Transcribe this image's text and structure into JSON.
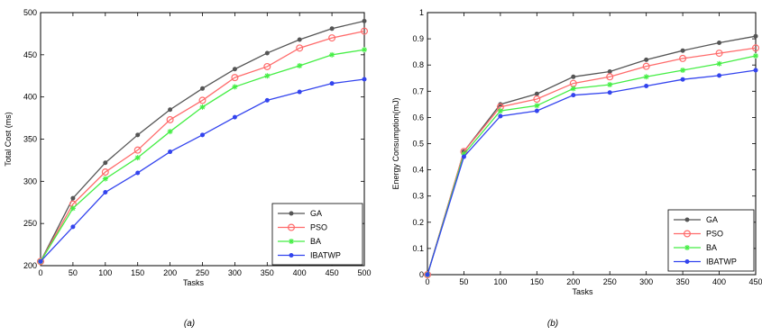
{
  "chart_data": [
    {
      "type": "line",
      "caption": "(a)",
      "xlabel": "Tasks",
      "ylabel": "Total Cost (ms)",
      "xlim": [
        0,
        500
      ],
      "ylim": [
        200,
        500
      ],
      "xticks": [
        0,
        50,
        100,
        150,
        200,
        250,
        300,
        350,
        400,
        450,
        500
      ],
      "yticks": [
        200,
        250,
        300,
        350,
        400,
        450,
        500
      ],
      "grid": false,
      "legend_position": "bottom-right",
      "x": [
        0,
        50,
        100,
        150,
        200,
        250,
        300,
        350,
        400,
        450,
        500
      ],
      "series": [
        {
          "name": "GA",
          "color": "#555555",
          "marker": "dot",
          "values": [
            205,
            280,
            322,
            355,
            385,
            410,
            433,
            452,
            468,
            481,
            490
          ]
        },
        {
          "name": "PSO",
          "color": "#ff6b6b",
          "marker": "circle",
          "values": [
            205,
            273,
            311,
            337,
            373,
            396,
            423,
            436,
            458,
            470,
            478
          ]
        },
        {
          "name": "BA",
          "color": "#44ee44",
          "marker": "star",
          "values": [
            205,
            268,
            303,
            328,
            359,
            388,
            412,
            425,
            437,
            450,
            456
          ]
        },
        {
          "name": "IBATWP",
          "color": "#3344ee",
          "marker": "dot",
          "values": [
            205,
            246,
            287,
            310,
            335,
            355,
            376,
            396,
            406,
            416,
            421
          ]
        }
      ]
    },
    {
      "type": "line",
      "caption": "(b)",
      "xlabel": "Tasks",
      "ylabel": "Energy Consumption(mJ)",
      "xlim": [
        0,
        450
      ],
      "ylim": [
        0,
        1
      ],
      "xticks": [
        0,
        50,
        100,
        150,
        200,
        250,
        300,
        350,
        400,
        450
      ],
      "yticks": [
        0,
        0.1,
        0.2,
        0.3,
        0.4,
        0.5,
        0.6,
        0.7,
        0.8,
        0.9,
        1
      ],
      "ytick_labels": [
        "0",
        "0.1",
        "0.2",
        "0.3",
        "0.4",
        "0.5",
        "0.6",
        "0.7",
        "0.8",
        "0.9",
        "1"
      ],
      "grid": false,
      "legend_position": "bottom-right",
      "x": [
        0,
        50,
        100,
        150,
        200,
        250,
        300,
        350,
        400,
        450
      ],
      "series": [
        {
          "name": "GA",
          "color": "#555555",
          "marker": "dot",
          "values": [
            0,
            0.47,
            0.65,
            0.69,
            0.755,
            0.775,
            0.82,
            0.855,
            0.885,
            0.91
          ]
        },
        {
          "name": "PSO",
          "color": "#ff6b6b",
          "marker": "circle",
          "values": [
            0,
            0.47,
            0.64,
            0.67,
            0.73,
            0.755,
            0.795,
            0.825,
            0.845,
            0.865
          ]
        },
        {
          "name": "BA",
          "color": "#44ee44",
          "marker": "star",
          "values": [
            0,
            0.46,
            0.625,
            0.645,
            0.71,
            0.725,
            0.755,
            0.78,
            0.805,
            0.835
          ]
        },
        {
          "name": "IBATWP",
          "color": "#3344ee",
          "marker": "dot",
          "values": [
            0,
            0.45,
            0.605,
            0.625,
            0.685,
            0.695,
            0.72,
            0.745,
            0.76,
            0.78
          ]
        }
      ]
    }
  ]
}
